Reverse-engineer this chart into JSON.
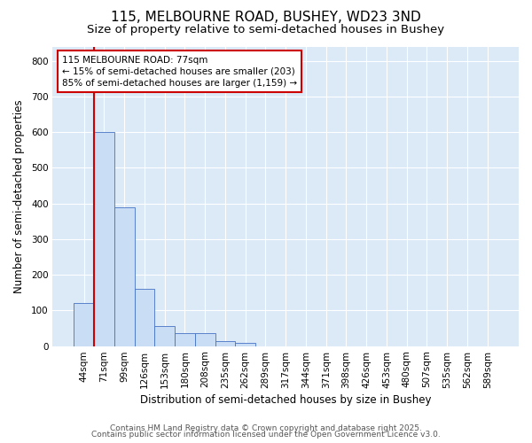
{
  "title_line1": "115, MELBOURNE ROAD, BUSHEY, WD23 3ND",
  "title_line2": "Size of property relative to semi-detached houses in Bushey",
  "xlabel": "Distribution of semi-detached houses by size in Bushey",
  "ylabel": "Number of semi-detached properties",
  "categories": [
    "44sqm",
    "71sqm",
    "99sqm",
    "126sqm",
    "153sqm",
    "180sqm",
    "208sqm",
    "235sqm",
    "262sqm",
    "289sqm",
    "317sqm",
    "344sqm",
    "371sqm",
    "398sqm",
    "426sqm",
    "453sqm",
    "480sqm",
    "507sqm",
    "535sqm",
    "562sqm",
    "589sqm"
  ],
  "values": [
    120,
    600,
    390,
    160,
    55,
    35,
    35,
    15,
    10,
    0,
    0,
    0,
    0,
    0,
    0,
    0,
    0,
    0,
    0,
    0,
    0
  ],
  "bar_color": "#c9ddf5",
  "bar_edge_color": "#4472c4",
  "annotation_title": "115 MELBOURNE ROAD: 77sqm",
  "annotation_line2": "← 15% of semi-detached houses are smaller (203)",
  "annotation_line3": "85% of semi-detached houses are larger (1,159) →",
  "annotation_box_color": "#ffffff",
  "annotation_box_edge": "#cc0000",
  "red_line_color": "#cc0000",
  "ylim": [
    0,
    840
  ],
  "yticks": [
    0,
    100,
    200,
    300,
    400,
    500,
    600,
    700,
    800
  ],
  "footer_line1": "Contains HM Land Registry data © Crown copyright and database right 2025.",
  "footer_line2": "Contains public sector information licensed under the Open Government Licence v3.0.",
  "fig_bg_color": "#ffffff",
  "plot_bg_color": "#dce9f7",
  "grid_color": "#ffffff",
  "title_fontsize": 11,
  "subtitle_fontsize": 9.5,
  "axis_label_fontsize": 8.5,
  "tick_fontsize": 7.5,
  "annotation_fontsize": 7.5,
  "footer_fontsize": 6.5
}
